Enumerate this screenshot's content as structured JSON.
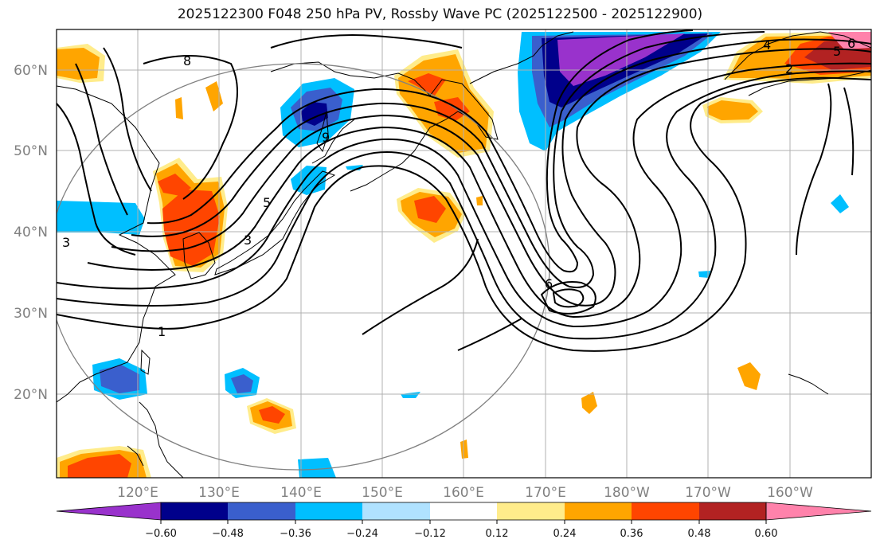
{
  "title": "2025122300 F048 250 hPa PV, Rossby Wave PC (2025122500 - 2025122900)",
  "lat_labels": [
    "60°N",
    "50°N",
    "40°N",
    "30°N",
    "20°N"
  ],
  "lon_labels": [
    "120°E",
    "130°E",
    "140°E",
    "150°E",
    "160°E",
    "170°E",
    "180°W",
    "170°W",
    "160°W"
  ],
  "colorbar": {
    "colors": [
      "#9932cc",
      "#00008b",
      "#3a5fcd",
      "#00bfff",
      "#b0e2ff",
      "#ffffff",
      "#ffec8b",
      "#ffa500",
      "#ff4500",
      "#b22222",
      "#ff82ab"
    ],
    "under_color": "#9932cc",
    "over_color": "#ff82ab",
    "labels": [
      "−0.60",
      "−0.48",
      "−0.36",
      "−0.24",
      "−0.12",
      "0.12",
      "0.24",
      "0.36",
      "0.48",
      "0.60"
    ]
  },
  "contour_labels": [
    "8",
    "9",
    "5",
    "3",
    "1",
    "3",
    "6",
    "5",
    "2",
    "6",
    "4"
  ]
}
